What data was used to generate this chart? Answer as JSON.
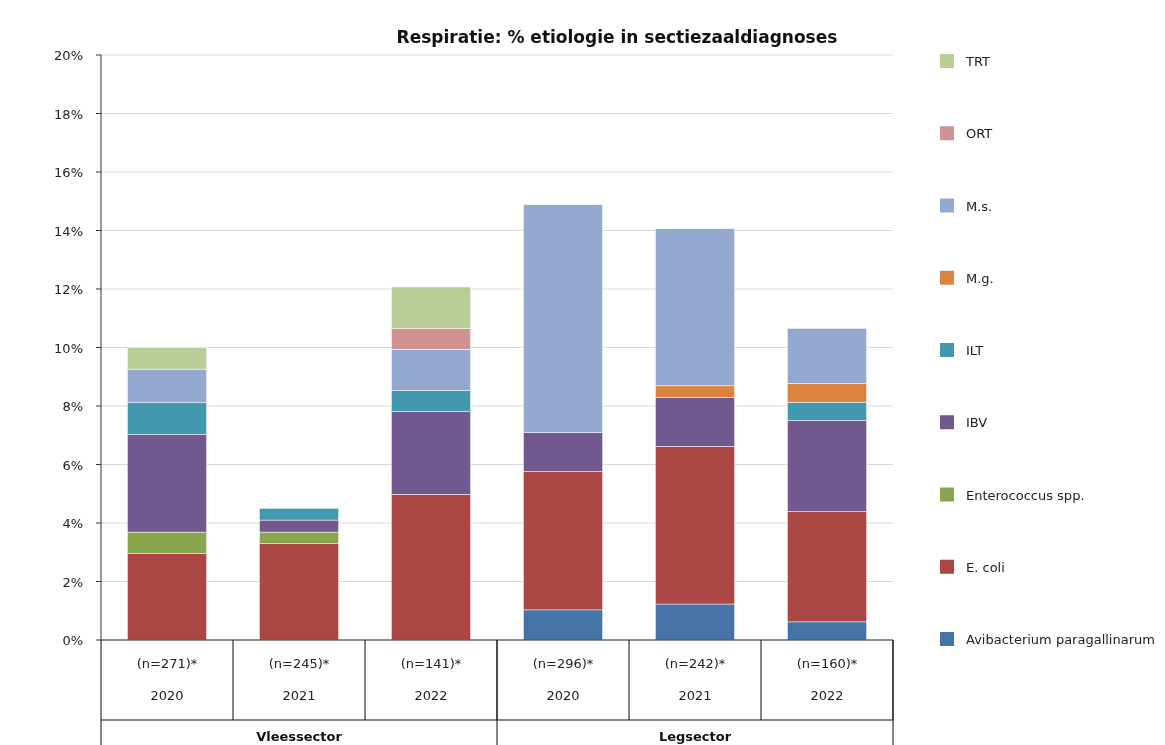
{
  "chart_data": {
    "type": "bar",
    "stacked": true,
    "title": "Respiratie: %  etiologie in sectiezaaldiagnoses",
    "categories": [
      "(n=271)*\n2020",
      "(n=245)*\n2021",
      "(n=141)*\n2022",
      "(n=296)*\n2020",
      "(n=242)*\n2021",
      "(n=160)*\n2022"
    ],
    "annotations": [
      "Vleessector",
      "Legsector"
    ],
    "series": [
      {
        "name": "Avibacterium paragallinarum",
        "color": "#4572a7",
        "values": [
          null,
          null,
          null,
          1.03,
          1.23,
          0.62
        ]
      },
      {
        "name": "E. coli",
        "color": "#aa4643",
        "values": [
          2.95,
          3.29,
          4.98,
          4.73,
          5.39,
          3.77
        ]
      },
      {
        "name": "Enterococcus spp.",
        "color": "#89a54e",
        "values": [
          0.74,
          0.4,
          null,
          null,
          null,
          null
        ]
      },
      {
        "name": "IBV",
        "color": "#71588f",
        "values": [
          3.34,
          0.41,
          2.83,
          1.33,
          1.67,
          3.12
        ]
      },
      {
        "name": "ILT",
        "color": "#4198af",
        "values": [
          1.08,
          0.4,
          0.72,
          null,
          null,
          0.62
        ]
      },
      {
        "name": "M.g.",
        "color": "#db843d",
        "values": [
          null,
          null,
          null,
          null,
          0.4,
          0.64
        ]
      },
      {
        "name": "M.s.",
        "color": "#93a9cf",
        "values": [
          1.15,
          null,
          1.41,
          7.79,
          5.37,
          1.88
        ]
      },
      {
        "name": "ORT",
        "color": "#d19392",
        "values": [
          null,
          null,
          0.71,
          null,
          null,
          null
        ]
      },
      {
        "name": "TRT",
        "color": "#b9cd96",
        "values": [
          0.73,
          null,
          1.42,
          null,
          null,
          null
        ]
      }
    ],
    "ylim": [
      0,
      20
    ],
    "yticks": [
      {
        "value": 0,
        "label": "0%"
      },
      {
        "value": 2,
        "label": "2%"
      },
      {
        "value": 4,
        "label": "4%"
      },
      {
        "value": 6,
        "label": "6%"
      },
      {
        "value": 8,
        "label": "8%"
      },
      {
        "value": 10,
        "label": "10%"
      },
      {
        "value": 12,
        "label": "12%"
      },
      {
        "value": 14,
        "label": "14%"
      },
      {
        "value": 16,
        "label": "16%"
      },
      {
        "value": 18,
        "label": "18%"
      },
      {
        "value": 20,
        "label": "20%"
      }
    ],
    "grid": "y",
    "legend": "right"
  }
}
